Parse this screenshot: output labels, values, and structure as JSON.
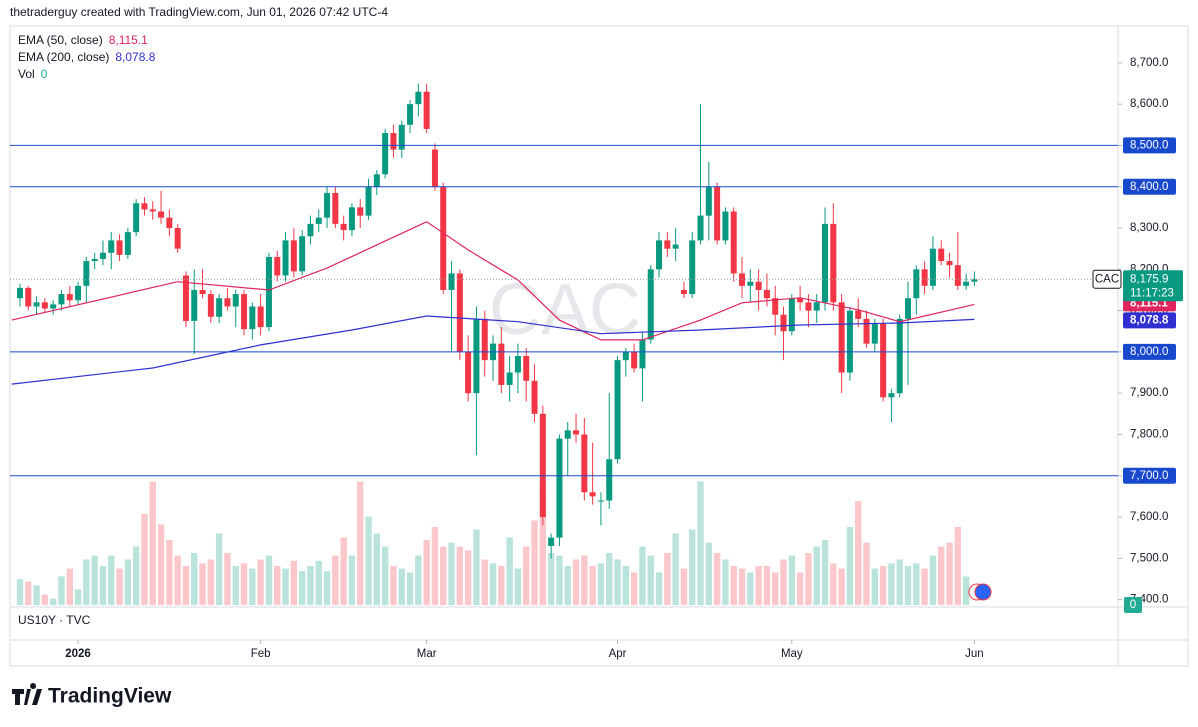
{
  "chart_data": {
    "type": "candlestick",
    "header": "thetraderguy created with TradingView.com, Jun 01, 2026 07:42 UTC-4",
    "symbol": "CAC",
    "last_price": 8175.9,
    "last_price_label": "8,175.9",
    "countdown": "11:17:23",
    "up_color": "#089981",
    "down_color": "#f23645",
    "ohlc": [
      [
        8130,
        8165,
        8110,
        8155
      ],
      [
        8155,
        8160,
        8100,
        8110
      ],
      [
        8110,
        8135,
        8090,
        8120
      ],
      [
        8120,
        8130,
        8095,
        8105
      ],
      [
        8105,
        8125,
        8090,
        8115
      ],
      [
        8115,
        8150,
        8100,
        8140
      ],
      [
        8140,
        8160,
        8110,
        8125
      ],
      [
        8125,
        8170,
        8115,
        8160
      ],
      [
        8160,
        8230,
        8120,
        8220
      ],
      [
        8220,
        8240,
        8200,
        8225
      ],
      [
        8225,
        8270,
        8210,
        8240
      ],
      [
        8240,
        8290,
        8200,
        8270
      ],
      [
        8270,
        8285,
        8220,
        8235
      ],
      [
        8235,
        8300,
        8225,
        8290
      ],
      [
        8290,
        8370,
        8280,
        8360
      ],
      [
        8360,
        8375,
        8330,
        8345
      ],
      [
        8345,
        8365,
        8320,
        8340
      ],
      [
        8340,
        8390,
        8310,
        8325
      ],
      [
        8325,
        8345,
        8280,
        8300
      ],
      [
        8300,
        8310,
        8240,
        8250
      ],
      [
        8185,
        8195,
        8060,
        8075
      ],
      [
        8075,
        8200,
        7995,
        8150
      ],
      [
        8150,
        8200,
        8130,
        8140
      ],
      [
        8140,
        8150,
        8070,
        8085
      ],
      [
        8085,
        8140,
        8070,
        8130
      ],
      [
        8130,
        8155,
        8100,
        8110
      ],
      [
        8110,
        8150,
        8060,
        8140
      ],
      [
        8140,
        8150,
        8040,
        8055
      ],
      [
        8055,
        8120,
        8030,
        8110
      ],
      [
        8110,
        8140,
        8040,
        8060
      ],
      [
        8060,
        8240,
        8050,
        8230
      ],
      [
        8230,
        8245,
        8170,
        8185
      ],
      [
        8185,
        8290,
        8170,
        8270
      ],
      [
        8270,
        8300,
        8180,
        8195
      ],
      [
        8195,
        8295,
        8185,
        8280
      ],
      [
        8280,
        8330,
        8260,
        8310
      ],
      [
        8310,
        8345,
        8290,
        8325
      ],
      [
        8325,
        8400,
        8300,
        8385
      ],
      [
        8385,
        8400,
        8300,
        8310
      ],
      [
        8310,
        8330,
        8270,
        8295
      ],
      [
        8295,
        8360,
        8280,
        8350
      ],
      [
        8350,
        8370,
        8300,
        8330
      ],
      [
        8330,
        8420,
        8320,
        8400
      ],
      [
        8400,
        8440,
        8380,
        8430
      ],
      [
        8430,
        8540,
        8420,
        8530
      ],
      [
        8530,
        8550,
        8470,
        8490
      ],
      [
        8490,
        8560,
        8470,
        8550
      ],
      [
        8550,
        8610,
        8530,
        8600
      ],
      [
        8600,
        8650,
        8570,
        8630
      ],
      [
        8630,
        8650,
        8530,
        8540
      ],
      [
        8490,
        8505,
        8390,
        8400
      ],
      [
        8400,
        8410,
        8140,
        8150
      ],
      [
        8150,
        8220,
        8000,
        8190
      ],
      [
        8190,
        8200,
        7980,
        8000
      ],
      [
        8000,
        8040,
        7880,
        7900
      ],
      [
        7900,
        8110,
        7750,
        8080
      ],
      [
        8080,
        8100,
        7940,
        7980
      ],
      [
        7980,
        8040,
        7930,
        8020
      ],
      [
        8020,
        8060,
        7900,
        7920
      ],
      [
        7920,
        7990,
        7880,
        7950
      ],
      [
        7950,
        8020,
        7900,
        7990
      ],
      [
        7990,
        8010,
        7880,
        7930
      ],
      [
        7930,
        7970,
        7830,
        7850
      ],
      [
        7850,
        7870,
        7580,
        7600
      ],
      [
        7530,
        7560,
        7500,
        7550
      ],
      [
        7550,
        7800,
        7530,
        7790
      ],
      [
        7790,
        7830,
        7700,
        7810
      ],
      [
        7810,
        7850,
        7780,
        7800
      ],
      [
        7800,
        7840,
        7640,
        7660
      ],
      [
        7660,
        7780,
        7630,
        7650
      ],
      [
        7640,
        7660,
        7580,
        7640
      ],
      [
        7640,
        7900,
        7620,
        7740
      ],
      [
        7740,
        7990,
        7730,
        7980
      ],
      [
        7980,
        8010,
        7940,
        8000
      ],
      [
        8000,
        8020,
        7950,
        7960
      ],
      [
        7960,
        8050,
        7880,
        8030
      ],
      [
        8030,
        8210,
        8020,
        8200
      ],
      [
        8200,
        8290,
        8180,
        8270
      ],
      [
        8270,
        8290,
        8230,
        8250
      ],
      [
        8250,
        8300,
        8220,
        8260
      ],
      [
        8150,
        8170,
        8130,
        8140
      ],
      [
        8140,
        8290,
        8130,
        8270
      ],
      [
        8270,
        8600,
        8260,
        8330
      ],
      [
        8330,
        8460,
        8270,
        8400
      ],
      [
        8400,
        8410,
        8260,
        8270
      ],
      [
        8270,
        8350,
        8260,
        8340
      ],
      [
        8340,
        8350,
        8170,
        8190
      ],
      [
        8190,
        8230,
        8130,
        8160
      ],
      [
        8160,
        8200,
        8120,
        8170
      ],
      [
        8170,
        8200,
        8100,
        8150
      ],
      [
        8150,
        8190,
        8110,
        8130
      ],
      [
        8130,
        8160,
        8040,
        8090
      ],
      [
        8090,
        8110,
        7980,
        8050
      ],
      [
        8050,
        8140,
        8040,
        8130
      ],
      [
        8130,
        8160,
        8100,
        8120
      ],
      [
        8120,
        8140,
        8060,
        8100
      ],
      [
        8100,
        8140,
        8070,
        8120
      ],
      [
        8120,
        8350,
        8100,
        8310
      ],
      [
        8310,
        8360,
        8100,
        8120
      ],
      [
        8120,
        8140,
        7900,
        7950
      ],
      [
        7950,
        8110,
        7930,
        8100
      ],
      [
        8100,
        8130,
        8060,
        8080
      ],
      [
        8080,
        8100,
        8010,
        8020
      ],
      [
        8020,
        8080,
        8000,
        8070
      ],
      [
        8070,
        8080,
        7880,
        7890
      ],
      [
        7890,
        7910,
        7830,
        7900
      ],
      [
        7900,
        8090,
        7890,
        8080
      ],
      [
        8080,
        8170,
        7920,
        8130
      ],
      [
        8130,
        8210,
        8090,
        8200
      ],
      [
        8200,
        8220,
        8140,
        8160
      ],
      [
        8160,
        8280,
        8150,
        8250
      ],
      [
        8250,
        8270,
        8210,
        8220
      ],
      [
        8220,
        8240,
        8180,
        8210
      ],
      [
        8210,
        8290,
        8150,
        8160
      ],
      [
        8160,
        8190,
        8150,
        8170
      ],
      [
        8170,
        8195,
        8160,
        8175.9
      ]
    ],
    "series": [
      {
        "name": "EMA (50, close)",
        "color": "#e0245e",
        "value_label": "8,115.1",
        "x": [
          -1,
          19,
          30,
          37,
          43,
          49,
          54,
          60,
          65,
          70,
          75,
          82,
          87,
          94,
          101,
          106,
          115
        ],
        "values": [
          8077,
          8170,
          8150,
          8203,
          8259,
          8315,
          8247,
          8174,
          8077,
          8029,
          8029,
          8077,
          8119,
          8131,
          8102,
          8073,
          8115.1
        ]
      },
      {
        "name": "EMA (200, close)",
        "color": "#3030d0",
        "value_label": "8,078.8",
        "x": [
          -1,
          16,
          29,
          40,
          49,
          60,
          70,
          82,
          94,
          106,
          115
        ],
        "values": [
          7922,
          7961,
          8017,
          8053,
          8087,
          8073,
          8044,
          8053,
          8065,
          8070,
          8078.8
        ]
      }
    ],
    "volume": {
      "name": "Vol",
      "value_label": "0",
      "vlim": [
        0,
        100
      ],
      "vticks": [
        0
      ],
      "values": [
        20,
        18,
        15,
        8,
        5,
        22,
        28,
        12,
        35,
        38,
        30,
        38,
        28,
        35,
        45,
        70,
        95,
        62,
        50,
        38,
        30,
        40,
        32,
        35,
        55,
        40,
        30,
        32,
        28,
        35,
        38,
        30,
        28,
        34,
        26,
        30,
        34,
        26,
        38,
        52,
        38,
        95,
        68,
        55,
        45,
        30,
        28,
        25,
        38,
        50,
        60,
        45,
        48,
        45,
        42,
        58,
        35,
        32,
        30,
        52,
        28,
        45,
        65,
        88,
        40,
        38,
        30,
        35,
        38,
        30,
        32,
        40,
        35,
        30,
        25,
        45,
        38,
        25,
        40,
        55,
        28,
        58,
        95,
        48,
        40,
        35,
        30,
        28,
        25,
        30,
        30,
        25,
        35,
        38,
        25,
        40,
        45,
        50,
        32,
        28,
        60,
        80,
        48,
        28,
        30,
        32,
        35,
        30,
        32,
        28,
        38,
        45,
        48,
        60,
        22,
        0
      ]
    },
    "hlines": [
      {
        "value": 8500,
        "label": "8,500.0"
      },
      {
        "value": 8400,
        "label": "8,400.0"
      },
      {
        "value": 8000,
        "label": "8,000.0"
      },
      {
        "value": 7700,
        "label": "7,700.0"
      }
    ],
    "hline_color": "#1848cc",
    "xlim": [
      -1.2,
      132.3
    ],
    "xticks": [
      {
        "value": 7,
        "label": "2026"
      },
      {
        "value": 29,
        "label": "Feb"
      },
      {
        "value": 49,
        "label": "Mar"
      },
      {
        "value": 72,
        "label": "Apr"
      },
      {
        "value": 93,
        "label": "May"
      },
      {
        "value": 115,
        "label": "Jun"
      }
    ],
    "ylim": [
      7387,
      8828
    ],
    "yticks": [
      {
        "value": 7400,
        "label": "7,400.0"
      },
      {
        "value": 7500,
        "label": "7,500.0"
      },
      {
        "value": 7600,
        "label": "7,600.0"
      },
      {
        "value": 7700,
        "label": "7,700.0"
      },
      {
        "value": 7800,
        "label": "7,800.0"
      },
      {
        "value": 7900,
        "label": "7,900.0"
      },
      {
        "value": 8000,
        "label": "8,000.0"
      },
      {
        "value": 8100,
        "label": "8,100.0"
      },
      {
        "value": 8200,
        "label": "8,200.0"
      },
      {
        "value": 8300,
        "label": "8,300.0"
      },
      {
        "value": 8400,
        "label": "8,400.0"
      },
      {
        "value": 8500,
        "label": "8,500.0"
      },
      {
        "value": 8600,
        "label": "8,600.0"
      },
      {
        "value": 8700,
        "label": "8,700.0"
      }
    ],
    "lower_pane": "US10Y · TVC",
    "brand": "TradingView"
  }
}
